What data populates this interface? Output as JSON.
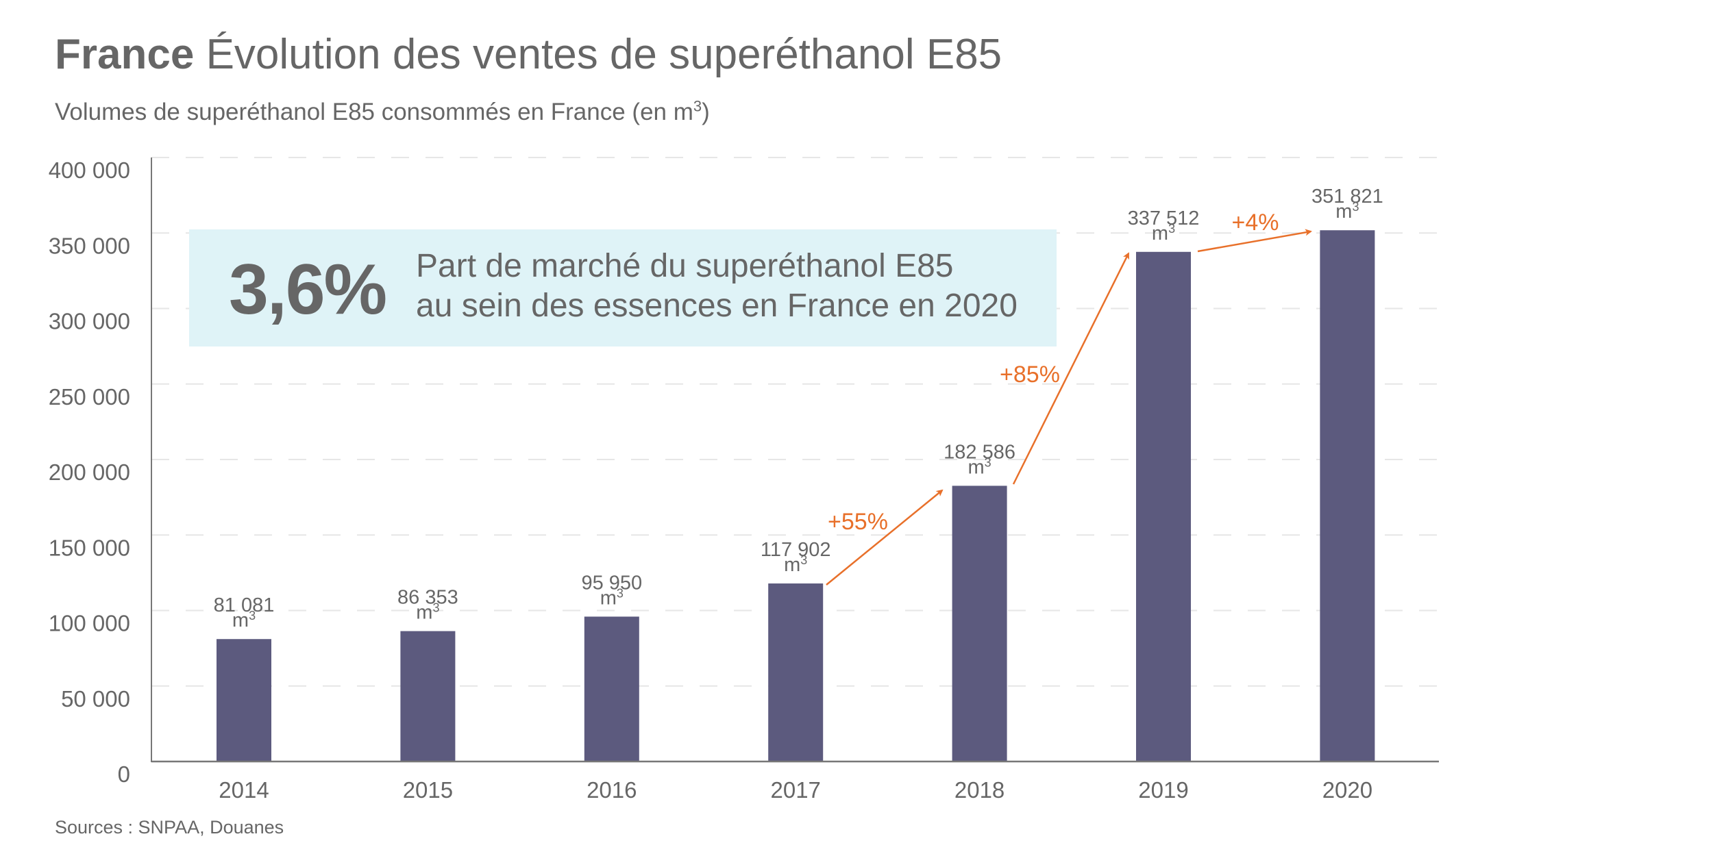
{
  "header": {
    "title_bold": "France",
    "title_light": "Évolution des ventes de superéthanol E85",
    "subtitle_main": "Volumes de superéthanol E85 consommés en France (en m",
    "subtitle_sup": "3",
    "subtitle_end": ")"
  },
  "callout": {
    "value": "3,6%",
    "line1": "Part de marché du superéthanol E85",
    "line2": "au sein des essences en France en 2020"
  },
  "footer": {
    "source": "Sources : SNPAA, Douanes"
  },
  "colors": {
    "bar": "#5c5a7e",
    "accent": "#e8702a",
    "text": "#666666",
    "callout_bg": "#dff3f7",
    "gridline": "#e6e6e6",
    "axis": "#777777"
  },
  "chart_data": {
    "type": "bar",
    "title": "France Évolution des ventes de superéthanol E85",
    "subtitle": "Volumes de superéthanol E85 consommés en France (en m³)",
    "xlabel": "",
    "ylabel": "",
    "categories": [
      "2014",
      "2015",
      "2016",
      "2017",
      "2018",
      "2019",
      "2020"
    ],
    "values": [
      81081,
      86353,
      95950,
      117902,
      182586,
      337512,
      351821
    ],
    "value_labels": [
      "81 081",
      "86 353",
      "95 950",
      "117 902",
      "182 586",
      "337 512",
      "351 821"
    ],
    "value_unit": "m",
    "value_unit_sup": "3",
    "ylim": [
      0,
      400000
    ],
    "yticks": [
      0,
      50000,
      100000,
      150000,
      200000,
      250000,
      300000,
      350000,
      400000
    ],
    "ytick_labels": [
      "0",
      "50 000",
      "100 000",
      "150 000",
      "200 000",
      "250 000",
      "300 000",
      "350 000",
      "400 000"
    ],
    "grid": true,
    "legend": "none",
    "annotations": [
      {
        "text": "+55%",
        "from": "2017",
        "to": "2018"
      },
      {
        "text": "+85%",
        "from": "2018",
        "to": "2019"
      },
      {
        "text": "+4%",
        "from": "2019",
        "to": "2020"
      }
    ]
  }
}
